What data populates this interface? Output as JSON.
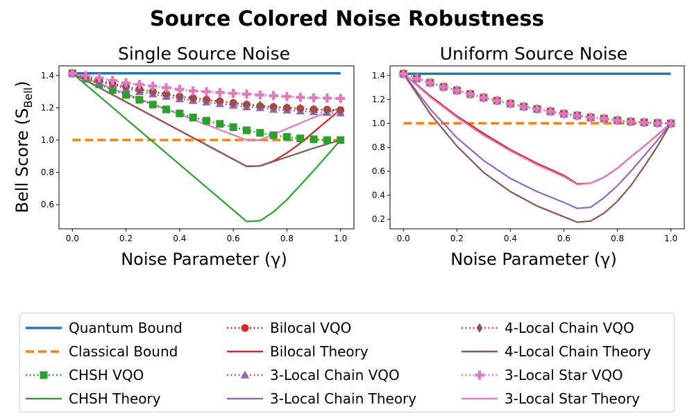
{
  "figure": {
    "title": "Source Colored Noise Robustness"
  },
  "colors": {
    "quantum": "#1f77b4",
    "classical": "#ff7f0e",
    "chsh": "#2ca02c",
    "bilocal": "#d62728",
    "chain3": "#9467bd",
    "chain4": "#8c564b",
    "star3": "#e377c2"
  },
  "legend": {
    "position": "below",
    "entries": [
      {
        "label": "Quantum Bound",
        "color": "#1f77b4",
        "style": "solid",
        "marker": ""
      },
      {
        "label": "Classical Bound",
        "color": "#ff7f0e",
        "style": "dashed",
        "marker": ""
      },
      {
        "label": "CHSH VQO",
        "color": "#2ca02c",
        "style": "dotted",
        "marker": "square"
      },
      {
        "label": "CHSH Theory",
        "color": "#2ca02c",
        "style": "solid",
        "marker": ""
      },
      {
        "label": "Bilocal VQO",
        "color": "#d62728",
        "style": "dotted",
        "marker": "circle"
      },
      {
        "label": "Bilocal Theory",
        "color": "#d62728",
        "style": "solid",
        "marker": ""
      },
      {
        "label": "3-Local Chain VQO",
        "color": "#9467bd",
        "style": "dotted",
        "marker": "triangle"
      },
      {
        "label": "3-Local Chain Theory",
        "color": "#9467bd",
        "style": "solid",
        "marker": ""
      },
      {
        "label": "4-Local Chain VQO",
        "color": "#8c564b",
        "style": "dotted",
        "marker": "diamond"
      },
      {
        "label": "4-Local Chain Theory",
        "color": "#8c564b",
        "style": "solid",
        "marker": ""
      },
      {
        "label": "3-Local Star VQO",
        "color": "#e377c2",
        "style": "dotted",
        "marker": "plus"
      },
      {
        "label": "3-Local Star Theory",
        "color": "#e377c2",
        "style": "solid",
        "marker": ""
      }
    ]
  },
  "chart_data": [
    {
      "type": "line",
      "title": "Single Source Noise",
      "xlabel": "Noise Parameter (γ)",
      "ylabel": "Bell Score (S",
      "ylabel_sub": "Bell",
      "ylabel_close": ")",
      "xlim": [
        -0.05,
        1.05
      ],
      "ylim": [
        0.45,
        1.46
      ],
      "xticks": [
        "0.0",
        "0.2",
        "0.4",
        "0.6",
        "0.8",
        "1.0"
      ],
      "yticks": [
        "0.6",
        "0.8",
        "1.0",
        "1.2",
        "1.4"
      ],
      "grid": false,
      "series": [
        {
          "name": "Quantum Bound",
          "color": "#1f77b4",
          "style": "solid",
          "marker": "",
          "x": [
            0,
            1
          ],
          "y": [
            1.414,
            1.414
          ]
        },
        {
          "name": "Classical Bound",
          "color": "#ff7f0e",
          "style": "dashed",
          "marker": "",
          "x": [
            0,
            1
          ],
          "y": [
            1.0,
            1.0
          ]
        },
        {
          "name": "CHSH Theory",
          "color": "#2ca02c",
          "style": "solid",
          "marker": "",
          "x": [
            0,
            0.65,
            0.7,
            0.75,
            0.8,
            0.85,
            0.9,
            0.95,
            1.0
          ],
          "y": [
            1.414,
            0.495,
            0.5,
            0.555,
            0.63,
            0.72,
            0.81,
            0.905,
            1.0
          ]
        },
        {
          "name": "Bilocal Theory",
          "color": "#d62728",
          "style": "solid",
          "marker": "",
          "x": [
            0,
            0.65,
            0.7,
            0.75,
            0.8,
            0.85,
            0.9,
            0.95,
            1.0
          ],
          "y": [
            1.414,
            0.837,
            0.84,
            0.87,
            0.92,
            0.98,
            1.05,
            1.12,
            1.19
          ]
        },
        {
          "name": "4-Local Chain Theory",
          "color": "#8c564b",
          "style": "solid",
          "marker": "",
          "x": [
            0,
            0.65,
            0.7,
            0.8,
            0.9,
            1.0
          ],
          "y": [
            1.414,
            0.837,
            0.84,
            0.895,
            0.95,
            1.0
          ]
        },
        {
          "name": "3-Local Star Theory",
          "color": "#e377c2",
          "style": "solid",
          "marker": "",
          "x": [
            0,
            0.65,
            0.7,
            0.8,
            0.9,
            1.0
          ],
          "y": [
            1.414,
            1.0,
            1.0,
            1.07,
            1.14,
            1.2
          ]
        },
        {
          "name": "CHSH VQO",
          "color": "#2ca02c",
          "style": "dotted",
          "marker": "square",
          "x": [
            0,
            0.05,
            0.1,
            0.15,
            0.2,
            0.25,
            0.3,
            0.35,
            0.4,
            0.45,
            0.5,
            0.55,
            0.6,
            0.65,
            0.7,
            0.75,
            0.8,
            0.85,
            0.9,
            0.95,
            1.0
          ],
          "y": [
            1.414,
            1.38,
            1.345,
            1.31,
            1.28,
            1.25,
            1.22,
            1.19,
            1.165,
            1.14,
            1.12,
            1.1,
            1.08,
            1.06,
            1.045,
            1.03,
            1.02,
            1.01,
            1.005,
            1.0,
            1.0
          ]
        },
        {
          "name": "Bilocal VQO",
          "color": "#d62728",
          "style": "dotted",
          "marker": "circle",
          "x": [
            0,
            0.05,
            0.1,
            0.15,
            0.2,
            0.25,
            0.3,
            0.35,
            0.4,
            0.45,
            0.5,
            0.55,
            0.6,
            0.65,
            0.7,
            0.75,
            0.8,
            0.85,
            0.9,
            0.95,
            1.0
          ],
          "y": [
            1.414,
            1.39,
            1.37,
            1.35,
            1.33,
            1.315,
            1.3,
            1.285,
            1.27,
            1.26,
            1.25,
            1.24,
            1.23,
            1.22,
            1.21,
            1.205,
            1.2,
            1.195,
            1.19,
            1.188,
            1.186
          ]
        },
        {
          "name": "3-Local Chain VQO",
          "color": "#9467bd",
          "style": "dotted",
          "marker": "triangle",
          "x": [
            0,
            0.05,
            0.1,
            0.15,
            0.2,
            0.25,
            0.3,
            0.35,
            0.4,
            0.45,
            0.5,
            0.55,
            0.6,
            0.65,
            0.7,
            0.75,
            0.8,
            0.85,
            0.9,
            0.95,
            1.0
          ],
          "y": [
            1.414,
            1.385,
            1.36,
            1.34,
            1.32,
            1.3,
            1.285,
            1.27,
            1.255,
            1.245,
            1.235,
            1.225,
            1.215,
            1.205,
            1.2,
            1.19,
            1.185,
            1.18,
            1.175,
            1.17,
            1.168
          ]
        },
        {
          "name": "4-Local Chain VQO",
          "color": "#8c564b",
          "style": "dotted",
          "marker": "diamond",
          "x": [
            0,
            0.05,
            0.1,
            0.15,
            0.2,
            0.25,
            0.3,
            0.35,
            0.4,
            0.45,
            0.5,
            0.55,
            0.6,
            0.65,
            0.7,
            0.75,
            0.8,
            0.85,
            0.9,
            0.95,
            1.0
          ],
          "y": [
            1.414,
            1.39,
            1.37,
            1.35,
            1.33,
            1.315,
            1.3,
            1.285,
            1.27,
            1.26,
            1.25,
            1.24,
            1.23,
            1.22,
            1.215,
            1.205,
            1.2,
            1.195,
            1.19,
            1.185,
            1.182
          ]
        },
        {
          "name": "3-Local Star VQO",
          "color": "#e377c2",
          "style": "dotted",
          "marker": "plus",
          "x": [
            0,
            0.05,
            0.1,
            0.15,
            0.2,
            0.25,
            0.3,
            0.35,
            0.4,
            0.45,
            0.5,
            0.55,
            0.6,
            0.65,
            0.7,
            0.75,
            0.8,
            0.85,
            0.9,
            0.95,
            1.0
          ],
          "y": [
            1.414,
            1.4,
            1.385,
            1.37,
            1.355,
            1.345,
            1.335,
            1.325,
            1.315,
            1.305,
            1.3,
            1.295,
            1.29,
            1.285,
            1.28,
            1.275,
            1.27,
            1.265,
            1.262,
            1.26,
            1.258
          ]
        }
      ]
    },
    {
      "type": "line",
      "title": "Uniform Source Noise",
      "xlabel": "Noise Parameter (γ)",
      "ylabel": "",
      "xlim": [
        -0.05,
        1.05
      ],
      "ylim": [
        0.12,
        1.48
      ],
      "xticks": [
        "0.0",
        "0.2",
        "0.4",
        "0.6",
        "0.8",
        "1.0"
      ],
      "yticks": [
        "0.2",
        "0.4",
        "0.6",
        "0.8",
        "1.0",
        "1.2",
        "1.4"
      ],
      "grid": false,
      "series": [
        {
          "name": "Quantum Bound",
          "color": "#1f77b4",
          "style": "solid",
          "marker": "",
          "x": [
            0,
            1
          ],
          "y": [
            1.414,
            1.414
          ]
        },
        {
          "name": "Classical Bound",
          "color": "#ff7f0e",
          "style": "dashed",
          "marker": "",
          "x": [
            0,
            1
          ],
          "y": [
            1.0,
            1.0
          ]
        },
        {
          "name": "CHSH Theory",
          "color": "#2ca02c",
          "style": "solid",
          "marker": "",
          "x": [
            0,
            0.1,
            0.2,
            0.3,
            0.4,
            0.5,
            0.6,
            0.65,
            0.7,
            0.75,
            0.8,
            0.85,
            0.9,
            0.95,
            1.0
          ],
          "y": [
            1.414,
            1.23,
            1.06,
            0.915,
            0.78,
            0.665,
            0.565,
            0.495,
            0.5,
            0.55,
            0.625,
            0.72,
            0.81,
            0.905,
            1.0
          ]
        },
        {
          "name": "Bilocal Theory",
          "color": "#d62728",
          "style": "solid",
          "marker": "",
          "x": [
            0,
            0.1,
            0.2,
            0.3,
            0.4,
            0.5,
            0.6,
            0.65,
            0.7,
            0.75,
            0.8,
            0.85,
            0.9,
            0.95,
            1.0
          ],
          "y": [
            1.414,
            1.23,
            1.06,
            0.915,
            0.78,
            0.665,
            0.565,
            0.495,
            0.5,
            0.55,
            0.625,
            0.72,
            0.81,
            0.905,
            1.0
          ]
        },
        {
          "name": "3-Local Chain Theory",
          "color": "#9467bd",
          "style": "solid",
          "marker": "",
          "x": [
            0,
            0.1,
            0.2,
            0.3,
            0.4,
            0.5,
            0.6,
            0.65,
            0.7,
            0.75,
            0.8,
            0.85,
            0.9,
            0.95,
            1.0
          ],
          "y": [
            1.414,
            1.12,
            0.88,
            0.69,
            0.54,
            0.43,
            0.34,
            0.29,
            0.3,
            0.38,
            0.48,
            0.6,
            0.73,
            0.86,
            1.0
          ]
        },
        {
          "name": "4-Local Chain Theory",
          "color": "#8c564b",
          "style": "solid",
          "marker": "",
          "x": [
            0,
            0.1,
            0.2,
            0.3,
            0.4,
            0.5,
            0.6,
            0.65,
            0.7,
            0.75,
            0.8,
            0.85,
            0.9,
            0.95,
            1.0
          ],
          "y": [
            1.414,
            1.08,
            0.81,
            0.59,
            0.43,
            0.31,
            0.22,
            0.175,
            0.185,
            0.25,
            0.35,
            0.48,
            0.64,
            0.81,
            1.0
          ]
        },
        {
          "name": "3-Local Star Theory",
          "color": "#e377c2",
          "style": "solid",
          "marker": "",
          "x": [
            0,
            0.1,
            0.2,
            0.3,
            0.4,
            0.5,
            0.6,
            0.65,
            0.7,
            0.75,
            0.8,
            0.85,
            0.9,
            0.95,
            1.0
          ],
          "y": [
            1.414,
            1.22,
            1.05,
            0.9,
            0.77,
            0.655,
            0.555,
            0.49,
            0.5,
            0.55,
            0.625,
            0.72,
            0.81,
            0.905,
            1.0
          ]
        },
        {
          "name": "CHSH VQO",
          "color": "#2ca02c",
          "style": "dotted",
          "marker": "square",
          "x": [
            0,
            0.05,
            0.1,
            0.15,
            0.2,
            0.25,
            0.3,
            0.35,
            0.4,
            0.45,
            0.5,
            0.55,
            0.6,
            0.65,
            0.7,
            0.75,
            0.8,
            0.85,
            0.9,
            0.95,
            1.0
          ],
          "y": [
            1.414,
            1.375,
            1.34,
            1.305,
            1.275,
            1.245,
            1.215,
            1.19,
            1.165,
            1.14,
            1.12,
            1.1,
            1.08,
            1.065,
            1.05,
            1.04,
            1.025,
            1.015,
            1.008,
            1.003,
            1.0
          ]
        },
        {
          "name": "Bilocal VQO",
          "color": "#d62728",
          "style": "dotted",
          "marker": "circle",
          "x": [
            0,
            0.05,
            0.1,
            0.15,
            0.2,
            0.25,
            0.3,
            0.35,
            0.4,
            0.45,
            0.5,
            0.55,
            0.6,
            0.65,
            0.7,
            0.75,
            0.8,
            0.85,
            0.9,
            0.95,
            1.0
          ],
          "y": [
            1.414,
            1.375,
            1.34,
            1.305,
            1.275,
            1.245,
            1.215,
            1.19,
            1.165,
            1.14,
            1.12,
            1.1,
            1.08,
            1.065,
            1.05,
            1.04,
            1.025,
            1.015,
            1.008,
            1.003,
            1.0
          ]
        },
        {
          "name": "3-Local Chain VQO",
          "color": "#9467bd",
          "style": "dotted",
          "marker": "triangle",
          "x": [
            0,
            0.05,
            0.1,
            0.15,
            0.2,
            0.25,
            0.3,
            0.35,
            0.4,
            0.45,
            0.5,
            0.55,
            0.6,
            0.65,
            0.7,
            0.75,
            0.8,
            0.85,
            0.9,
            0.95,
            1.0
          ],
          "y": [
            1.414,
            1.375,
            1.34,
            1.305,
            1.275,
            1.245,
            1.215,
            1.19,
            1.165,
            1.14,
            1.12,
            1.1,
            1.08,
            1.065,
            1.05,
            1.04,
            1.025,
            1.015,
            1.008,
            1.003,
            1.0
          ]
        },
        {
          "name": "4-Local Chain VQO",
          "color": "#8c564b",
          "style": "dotted",
          "marker": "diamond",
          "x": [
            0,
            0.05,
            0.1,
            0.15,
            0.2,
            0.25,
            0.3,
            0.35,
            0.4,
            0.45,
            0.5,
            0.55,
            0.6,
            0.65,
            0.7,
            0.75,
            0.8,
            0.85,
            0.9,
            0.95,
            1.0
          ],
          "y": [
            1.414,
            1.375,
            1.34,
            1.305,
            1.275,
            1.245,
            1.215,
            1.19,
            1.165,
            1.14,
            1.12,
            1.1,
            1.08,
            1.065,
            1.05,
            1.04,
            1.025,
            1.015,
            1.008,
            1.003,
            1.0
          ]
        },
        {
          "name": "3-Local Star VQO",
          "color": "#e377c2",
          "style": "dotted",
          "marker": "plus",
          "x": [
            0,
            0.05,
            0.1,
            0.15,
            0.2,
            0.25,
            0.3,
            0.35,
            0.4,
            0.45,
            0.5,
            0.55,
            0.6,
            0.65,
            0.7,
            0.75,
            0.8,
            0.85,
            0.9,
            0.95,
            1.0
          ],
          "y": [
            1.414,
            1.375,
            1.34,
            1.305,
            1.275,
            1.245,
            1.215,
            1.19,
            1.165,
            1.14,
            1.12,
            1.1,
            1.08,
            1.065,
            1.05,
            1.04,
            1.025,
            1.015,
            1.008,
            1.003,
            1.0
          ]
        }
      ]
    }
  ]
}
